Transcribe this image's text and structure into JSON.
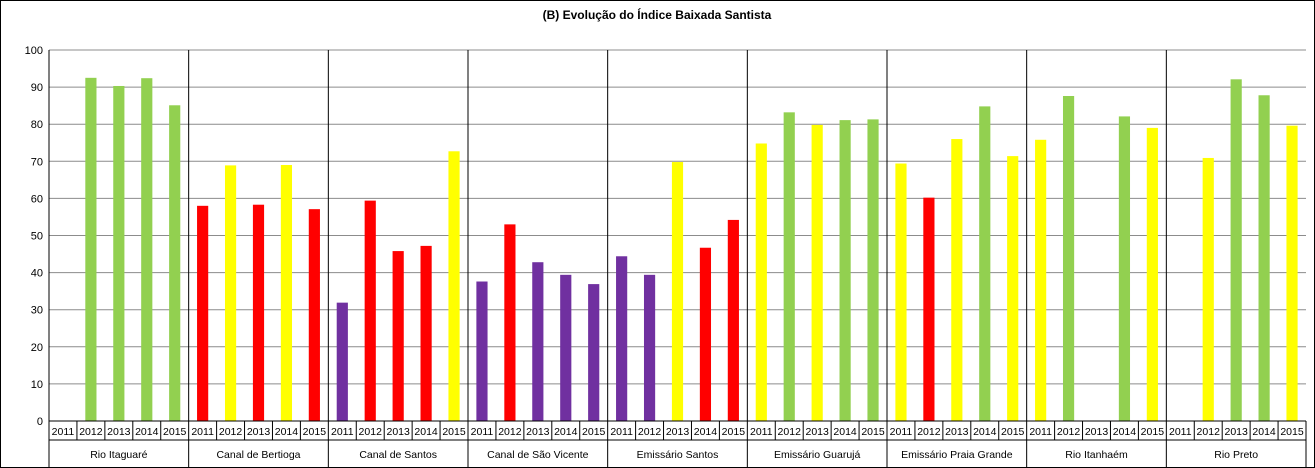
{
  "chart_data": {
    "type": "bar",
    "title": "(B)  Evolução do Índice Baixada Santista",
    "xlabel": "",
    "ylabel": "",
    "ylim": [
      0,
      100
    ],
    "yticks": [
      0,
      10,
      20,
      30,
      40,
      50,
      60,
      70,
      80,
      90,
      100
    ],
    "grid": true,
    "legend": "none",
    "years": [
      "2011",
      "2012",
      "2013",
      "2014",
      "2015"
    ],
    "colors": {
      "green": "#92d050",
      "yellow": "#ffff00",
      "red": "#ff0000",
      "purple": "#7030a0"
    },
    "groups": [
      {
        "name": "Rio Itaguaré",
        "values": [
          null,
          92.5,
          90.3,
          92.4,
          85.1
        ],
        "colors": [
          null,
          "green",
          "green",
          "green",
          "green"
        ]
      },
      {
        "name": "Canal de Bertioga",
        "values": [
          58.0,
          68.9,
          58.3,
          69.0,
          57.1
        ],
        "colors": [
          "red",
          "yellow",
          "red",
          "yellow",
          "red"
        ]
      },
      {
        "name": "Canal de Santos",
        "values": [
          31.9,
          59.4,
          45.8,
          47.2,
          72.7
        ],
        "colors": [
          "purple",
          "red",
          "red",
          "red",
          "yellow"
        ]
      },
      {
        "name": "Canal de São Vicente",
        "values": [
          37.6,
          53.0,
          42.8,
          39.4,
          36.9
        ],
        "colors": [
          "purple",
          "red",
          "purple",
          "purple",
          "purple"
        ]
      },
      {
        "name": "Emissário Santos",
        "values": [
          44.4,
          39.4,
          69.8,
          46.7,
          54.2
        ],
        "colors": [
          "purple",
          "purple",
          "yellow",
          "red",
          "red"
        ]
      },
      {
        "name": "Emissário Guarujá",
        "values": [
          74.8,
          83.2,
          79.8,
          81.1,
          81.3
        ],
        "colors": [
          "yellow",
          "green",
          "yellow",
          "green",
          "green"
        ]
      },
      {
        "name": "Emissário Praia Grande",
        "values": [
          69.4,
          60.2,
          76.0,
          84.8,
          71.4
        ],
        "colors": [
          "yellow",
          "red",
          "yellow",
          "green",
          "yellow"
        ]
      },
      {
        "name": "Rio Itanhaém",
        "values": [
          75.8,
          87.6,
          null,
          82.1,
          79.0
        ],
        "colors": [
          "yellow",
          "green",
          null,
          "green",
          "yellow"
        ]
      },
      {
        "name": "Rio Preto",
        "values": [
          null,
          70.9,
          92.1,
          87.8,
          79.6
        ],
        "colors": [
          null,
          "yellow",
          "green",
          "green",
          "yellow"
        ]
      }
    ]
  }
}
